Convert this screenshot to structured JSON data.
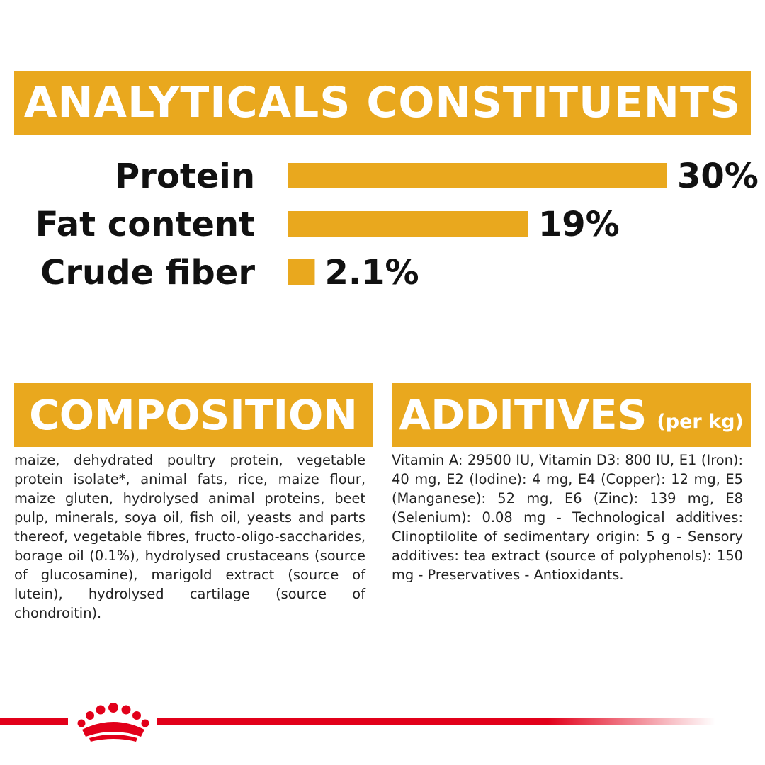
{
  "headings": {
    "analytical": "ANALYTICALS CONSTITUENTS",
    "composition": "COMPOSITION",
    "additives": "ADDITIVES",
    "additives_sub": "(per kg)"
  },
  "colors": {
    "accent": "#e9a81e",
    "brand_red": "#e2001a",
    "text": "#111111"
  },
  "chart_data": {
    "type": "bar",
    "orientation": "horizontal",
    "categories": [
      "Protein",
      "Fat content",
      "Crude fiber"
    ],
    "values": [
      30,
      19,
      2.1
    ],
    "value_labels": [
      "30%",
      "19%",
      "2.1%"
    ],
    "unit": "%",
    "title": "",
    "xlabel": "",
    "ylabel": "",
    "grid": false
  },
  "composition_text": "maize, dehydrated poultry protein, vegetable protein isolate*, animal fats, rice, maize flour, maize gluten, hydrolysed animal proteins, beet pulp, minerals, soya oil, fish oil, yeasts and parts thereof, vegetable fibres, fructo-oligo-saccharides, borage oil (0.1%), hydrolysed crustaceans (source of glucosamine), marigold extract (source of lutein), hydrolysed cartilage (source of chondroitin).",
  "additives_text": "Vitamin A: 29500 IU, Vitamin D3: 800 IU, E1 (Iron): 40 mg, E2 (Iodine): 4 mg, E4 (Copper): 12 mg, E5 (Manganese): 52 mg, E6 (Zinc): 139 mg, E8 (Selenium): 0.08 mg - Technological additives: Clinoptilolite of sedimentary origin: 5 g - Sensory additives: tea extract (source of polyphenols): 150 mg - Preservatives - Antioxidants.",
  "footer": {
    "logo_icon": "crown-icon"
  }
}
